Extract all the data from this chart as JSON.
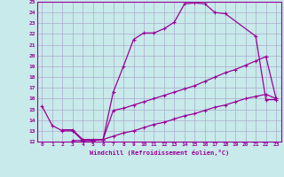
{
  "xlabel": "Windchill (Refroidissement éolien,°C)",
  "bg_color": "#c8eaea",
  "grid_color": "#aaaacc",
  "line_color": "#990099",
  "xlim": [
    -0.5,
    23.5
  ],
  "ylim": [
    12,
    25
  ],
  "xticks": [
    0,
    1,
    2,
    3,
    4,
    5,
    6,
    7,
    8,
    9,
    10,
    11,
    12,
    13,
    14,
    15,
    16,
    17,
    18,
    19,
    20,
    21,
    22,
    23
  ],
  "yticks": [
    12,
    13,
    14,
    15,
    16,
    17,
    18,
    19,
    20,
    21,
    22,
    23,
    24,
    25
  ],
  "line1_x": [
    0,
    1,
    2,
    3,
    4,
    5,
    6,
    7,
    8,
    9,
    10,
    11,
    12,
    13,
    14,
    15,
    16,
    17,
    18,
    21,
    22,
    23
  ],
  "line1_y": [
    15.3,
    13.5,
    13.0,
    13.0,
    12.1,
    12.1,
    12.2,
    16.6,
    19.0,
    21.5,
    22.1,
    22.1,
    22.5,
    23.1,
    24.8,
    24.9,
    24.8,
    24.0,
    23.9,
    21.8,
    15.9,
    15.9
  ],
  "line2_x": [
    2,
    3,
    4,
    5,
    6,
    7,
    8,
    9,
    10,
    11,
    12,
    13,
    14,
    15,
    16,
    17,
    18,
    19,
    20,
    21,
    22,
    23
  ],
  "line2_y": [
    13.1,
    13.1,
    12.2,
    12.2,
    12.2,
    14.9,
    15.1,
    15.4,
    15.7,
    16.0,
    16.3,
    16.6,
    16.9,
    17.2,
    17.6,
    18.0,
    18.4,
    18.7,
    19.1,
    19.5,
    19.9,
    16.0
  ],
  "line3_x": [
    3,
    4,
    5,
    6,
    7,
    8,
    9,
    10,
    11,
    12,
    13,
    14,
    15,
    16,
    17,
    18,
    19,
    20,
    21,
    22,
    23
  ],
  "line3_y": [
    12.1,
    12.1,
    12.1,
    12.2,
    12.5,
    12.8,
    13.0,
    13.3,
    13.6,
    13.8,
    14.1,
    14.4,
    14.6,
    14.9,
    15.2,
    15.4,
    15.7,
    16.0,
    16.2,
    16.4,
    16.0
  ]
}
